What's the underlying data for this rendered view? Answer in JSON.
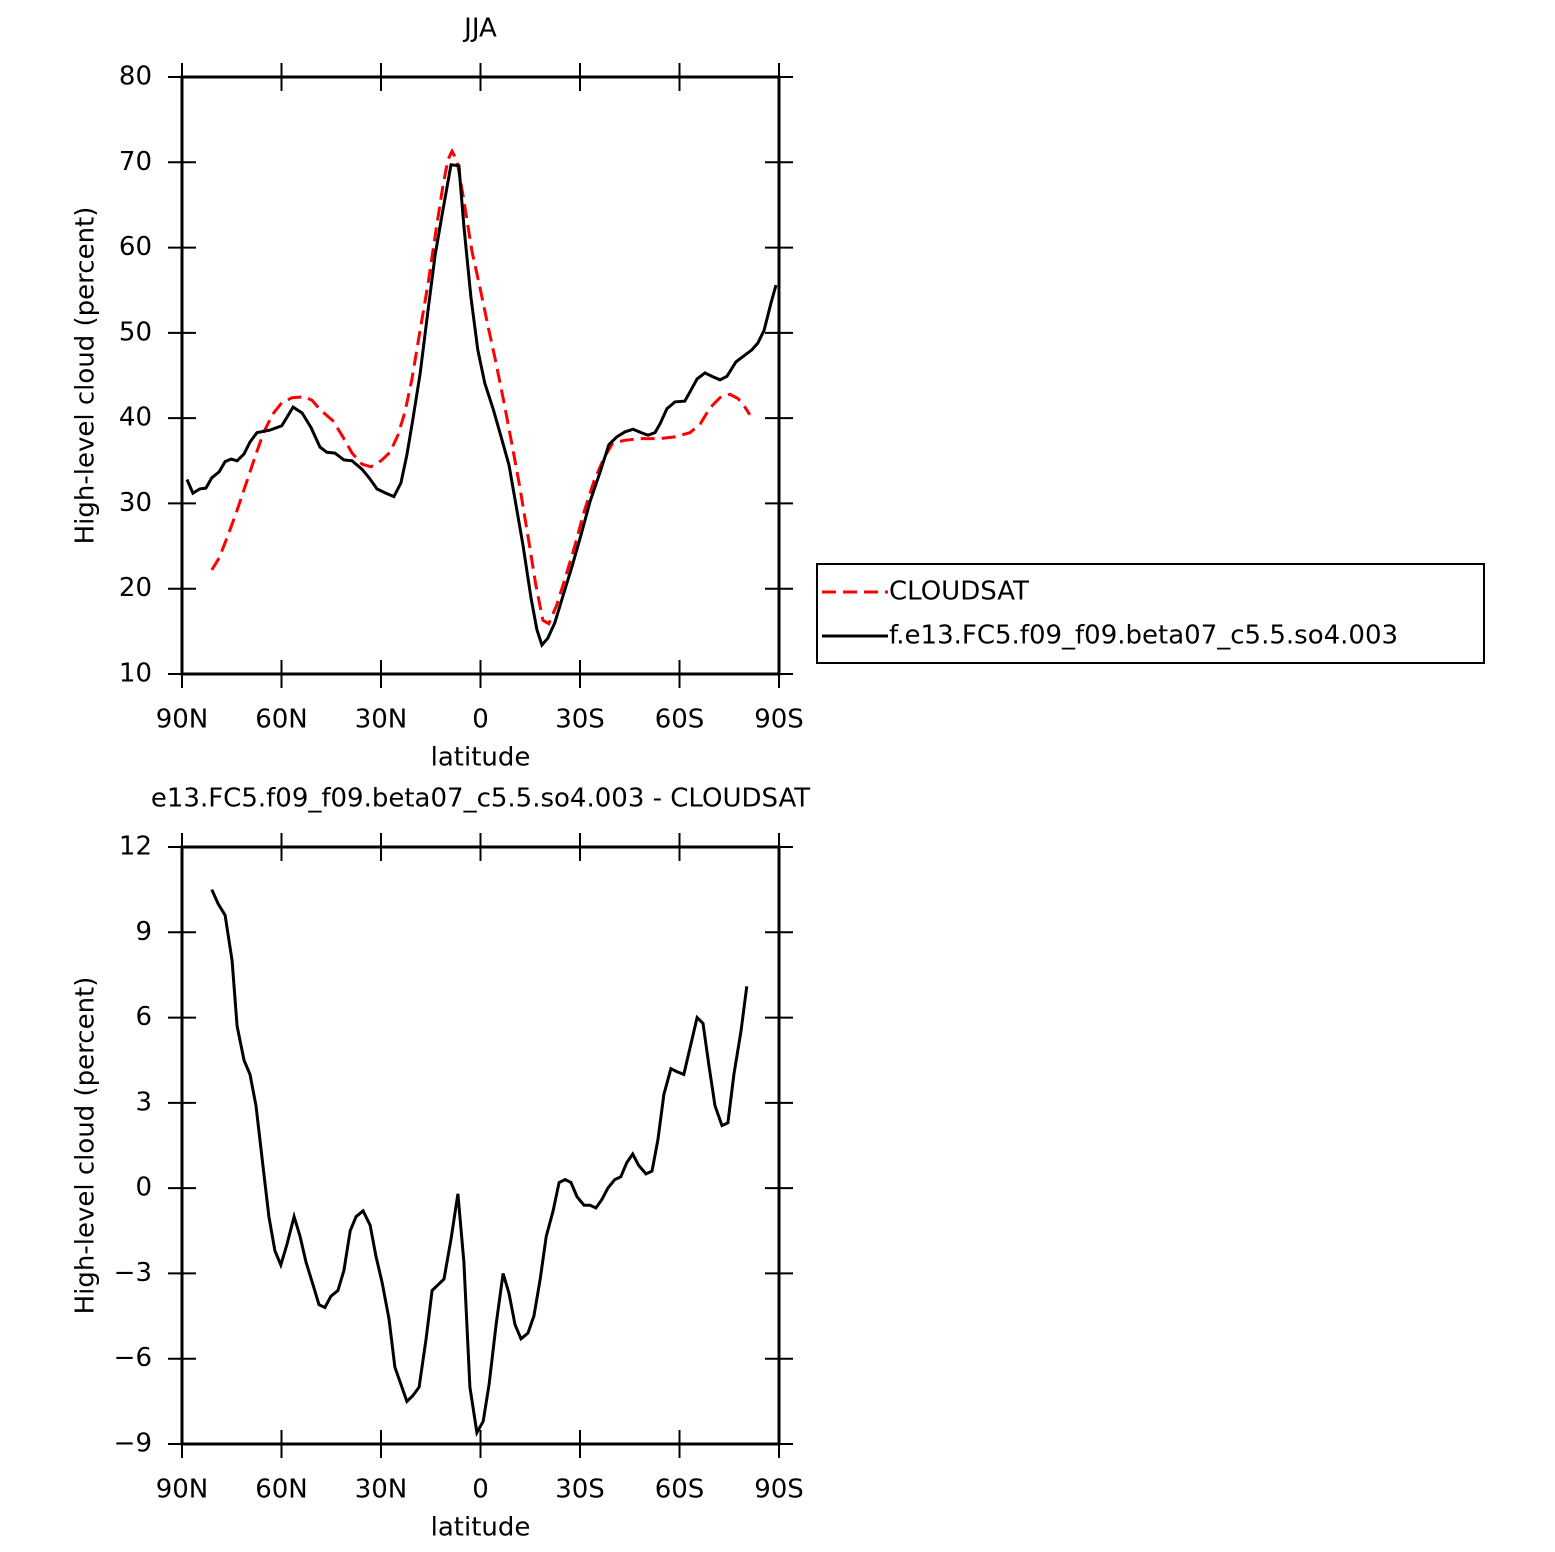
{
  "chart_data": [
    {
      "type": "line",
      "title": "JJA",
      "xlabel": "latitude",
      "ylabel": "High-level cloud (percent)",
      "xlim": [
        90,
        -90
      ],
      "xticks": [
        {
          "value": 90,
          "label": "90N"
        },
        {
          "value": 60,
          "label": "60N"
        },
        {
          "value": 30,
          "label": "30N"
        },
        0,
        {
          "value": -30,
          "label": "30S"
        },
        {
          "value": -60,
          "label": "60S"
        },
        {
          "value": -90,
          "label": "90S"
        }
      ],
      "ylim": [
        10,
        80
      ],
      "yticks": [
        10,
        20,
        30,
        40,
        50,
        60,
        70,
        80
      ],
      "legend": "right",
      "series": [
        {
          "name": "CLOUDSAT",
          "color": "#ff0000",
          "linestyle": "dashed",
          "x": [
            81,
            78.8,
            76.1,
            73.4,
            70.7,
            67.7,
            65.3,
            62.6,
            59.9,
            56.8,
            53.2,
            50.8,
            48.4,
            44.5,
            41.5,
            38.7,
            35.7,
            33,
            30,
            27.3,
            24.9,
            22.8,
            20.7,
            18.2,
            15.8,
            13.4,
            11.3,
            9.8,
            8.6,
            7.1,
            5,
            2.6,
            0.2,
            -2.2,
            -4.6,
            -7,
            -9.5,
            -11.9,
            -14.3,
            -16.7,
            -18.8,
            -20.6,
            -23,
            -25.8,
            -28.5,
            -31.2,
            -34.2,
            -37.2,
            -39.9,
            -43.6,
            -48.1,
            -54.1,
            -58.6,
            -63.2,
            -66.2,
            -69.2,
            -72.2,
            -75.2,
            -77.6,
            -79.4,
            -81.2
          ],
          "values": [
            22.2,
            23.6,
            26.3,
            29.2,
            32.3,
            35.8,
            38.4,
            40.5,
            41.8,
            42.4,
            42.5,
            42.1,
            41,
            39.7,
            37.8,
            35.9,
            34.6,
            34.3,
            35,
            36,
            38,
            40.7,
            44.5,
            50.3,
            55.8,
            62.1,
            67.3,
            70.3,
            71.3,
            70.2,
            65.5,
            59.6,
            55.4,
            50.9,
            46.6,
            42,
            36.9,
            31.8,
            26.2,
            20.4,
            16.3,
            15.9,
            18.1,
            21.6,
            25.1,
            29,
            32.6,
            35.3,
            37.1,
            37.4,
            37.6,
            37.6,
            37.8,
            38.3,
            39.3,
            41.2,
            42.4,
            42.8,
            42.3,
            41.5,
            40.4
          ]
        },
        {
          "name": "f.e13.FC5.f09_f09.beta07_c5.5.so4.003",
          "color": "#000000",
          "linestyle": "solid",
          "x": [
            88.5,
            86.7,
            84.6,
            82.8,
            81,
            78.8,
            77,
            75.2,
            73.4,
            71.3,
            69.5,
            67.4,
            63.5,
            59.9,
            56.5,
            53.8,
            51.1,
            48.4,
            46.3,
            43.9,
            41.2,
            38.7,
            35.7,
            33.6,
            31.2,
            28.5,
            26.1,
            24,
            22.2,
            20.4,
            18.2,
            15.8,
            13.7,
            11.6,
            8.9,
            6.5,
            5,
            2.9,
            0.8,
            -1.3,
            -3.8,
            -6.5,
            -8.6,
            -10.7,
            -12.8,
            -15.2,
            -17,
            -18.5,
            -20.3,
            -22.4,
            -24.9,
            -27.6,
            -30.3,
            -33,
            -36,
            -38.7,
            -41.1,
            -43.6,
            -46,
            -48.4,
            -50.5,
            -52.6,
            -54.1,
            -56.2,
            -58.6,
            -61.6,
            -63.2,
            -65.3,
            -67.7,
            -69.8,
            -72.2,
            -74.3,
            -77,
            -79.4,
            -81.8,
            -83.6,
            -85.5,
            -87.6,
            -89.1
          ],
          "values": [
            32.8,
            31.2,
            31.7,
            31.8,
            33,
            33.7,
            34.9,
            35.2,
            35,
            35.8,
            37.2,
            38.3,
            38.6,
            39.1,
            41.3,
            40.6,
            38.9,
            36.6,
            36,
            35.9,
            35.1,
            35,
            34,
            33,
            31.7,
            31.2,
            30.8,
            32.4,
            35.7,
            39.8,
            45.2,
            52.7,
            59.1,
            63.8,
            69.7,
            69.6,
            62.5,
            54.2,
            48,
            44.1,
            41.1,
            37.4,
            34.5,
            29.8,
            25.1,
            19,
            15.2,
            13.4,
            14.2,
            16,
            19.2,
            22.6,
            26.3,
            30.2,
            33.6,
            36.9,
            37.8,
            38.4,
            38.7,
            38.3,
            38,
            38.3,
            39.3,
            41.1,
            41.9,
            42,
            43.1,
            44.6,
            45.3,
            44.9,
            44.5,
            44.9,
            46.6,
            47.3,
            48,
            48.8,
            50.3,
            53.5,
            55.6
          ]
        }
      ]
    },
    {
      "type": "line",
      "title": "e13.FC5.f09_f09.beta07_c5.5.so4.003 - CLOUDSAT",
      "xlabel": "latitude",
      "ylabel": "High-level cloud (percent)",
      "xlim": [
        90,
        -90
      ],
      "xticks": [
        {
          "value": 90,
          "label": "90N"
        },
        {
          "value": 60,
          "label": "60N"
        },
        {
          "value": 30,
          "label": "30N"
        },
        0,
        {
          "value": -30,
          "label": "30S"
        },
        {
          "value": -60,
          "label": "60S"
        },
        {
          "value": -90,
          "label": "90S"
        }
      ],
      "ylim": [
        -9,
        12
      ],
      "yticks": [
        {
          "value": -9,
          "label": "−9"
        },
        {
          "value": -6,
          "label": "−6"
        },
        {
          "value": -3,
          "label": "−3"
        },
        0,
        3,
        6,
        9,
        12
      ],
      "series": [
        {
          "color": "#000000",
          "linestyle": "solid",
          "x": [
            81,
            79.1,
            77,
            74.9,
            73.4,
            71.3,
            69.5,
            67.7,
            65.6,
            63.8,
            62,
            60.2,
            58.4,
            56.2,
            54.4,
            52.6,
            50.5,
            48.7,
            46.9,
            45.1,
            43,
            41.2,
            39.3,
            37.5,
            35.4,
            33.3,
            31.5,
            29.7,
            27.6,
            25.8,
            24,
            22.2,
            20.4,
            18.5,
            16.4,
            14.6,
            12.8,
            11,
            8.9,
            6.8,
            5,
            3.2,
            1.1,
            -0.8,
            -2.6,
            -4.7,
            -6.8,
            -8.6,
            -10.4,
            -12.2,
            -14.3,
            -16.1,
            -18,
            -19.8,
            -21.9,
            -23.7,
            -25.5,
            -27.3,
            -29.1,
            -31.2,
            -33,
            -34.8,
            -36.6,
            -38.4,
            -40.5,
            -42.3,
            -44.1,
            -45.9,
            -47.7,
            -49.9,
            -51.7,
            -53.5,
            -55.3,
            -57.4,
            -59.2,
            -61.3,
            -63.1,
            -65.3,
            -67.1,
            -68.9,
            -70.7,
            -72.8,
            -74.6,
            -76.4,
            -78.5,
            -80.3
          ],
          "values": [
            10.5,
            10,
            9.6,
            8,
            5.7,
            4.5,
            4,
            2.9,
            0.8,
            -1,
            -2.2,
            -2.7,
            -2,
            -1,
            -1.7,
            -2.6,
            -3.4,
            -4.1,
            -4.2,
            -3.8,
            -3.6,
            -2.9,
            -1.5,
            -1,
            -0.8,
            -1.3,
            -2.4,
            -3.3,
            -4.6,
            -6.3,
            -6.9,
            -7.5,
            -7.3,
            -7,
            -5.3,
            -3.6,
            -3.4,
            -3.2,
            -1.8,
            -0.2,
            -2.6,
            -7,
            -8.6,
            -8.2,
            -6.9,
            -4.8,
            -3,
            -3.7,
            -4.8,
            -5.3,
            -5.1,
            -4.5,
            -3.2,
            -1.7,
            -0.8,
            0.2,
            0.3,
            0.2,
            -0.3,
            -0.6,
            -0.6,
            -0.7,
            -0.4,
            0,
            0.3,
            0.4,
            0.9,
            1.2,
            0.8,
            0.5,
            0.6,
            1.7,
            3.3,
            4.2,
            4.1,
            4,
            4.9,
            6,
            5.8,
            4.3,
            2.9,
            2.2,
            2.3,
            4,
            5.5,
            7.1
          ]
        }
      ]
    }
  ]
}
